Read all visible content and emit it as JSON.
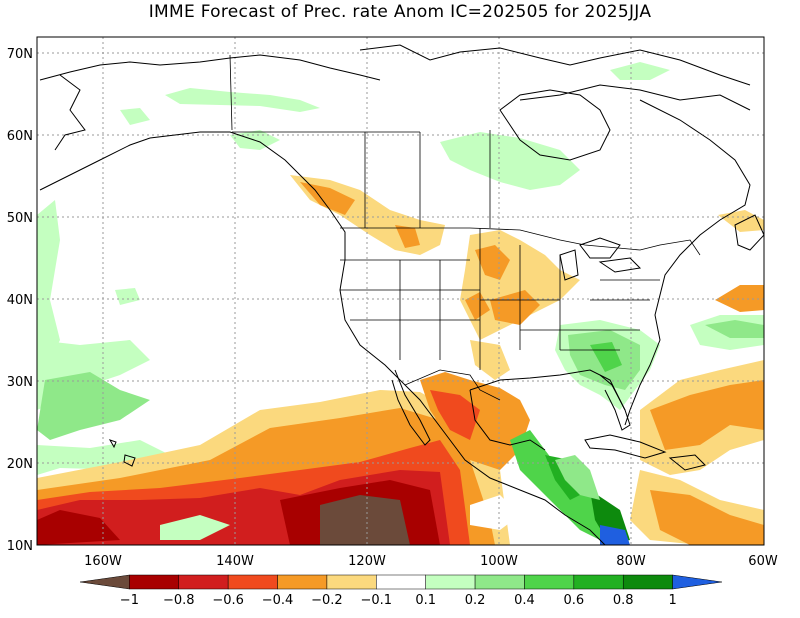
{
  "title": "IMME Forecast of Prec. rate Anom IC=202505 for 2025JJA",
  "map": {
    "lon_range": [
      -170,
      -60
    ],
    "lat_range": [
      10,
      72
    ],
    "lat_ticks": [
      "10N",
      "20N",
      "30N",
      "40N",
      "50N",
      "60N",
      "70N"
    ],
    "lon_ticks": [
      "160W",
      "140W",
      "120W",
      "100W",
      "80W",
      "60W"
    ],
    "grid": true
  },
  "colorbar": {
    "labels": [
      "−1",
      "−0.8",
      "−0.6",
      "−0.4",
      "−0.2",
      "−0.1",
      "0.1",
      "0.2",
      "0.4",
      "0.6",
      "0.8",
      "1"
    ],
    "colors": [
      "#6b4a3a",
      "#a80000",
      "#d11e1e",
      "#f04a1e",
      "#f59a26",
      "#fbd97e",
      "#ffffff",
      "#c4ffc0",
      "#8fe889",
      "#4fd44a",
      "#22b022",
      "#0d8a0d",
      "#1f5fe0"
    ]
  }
}
